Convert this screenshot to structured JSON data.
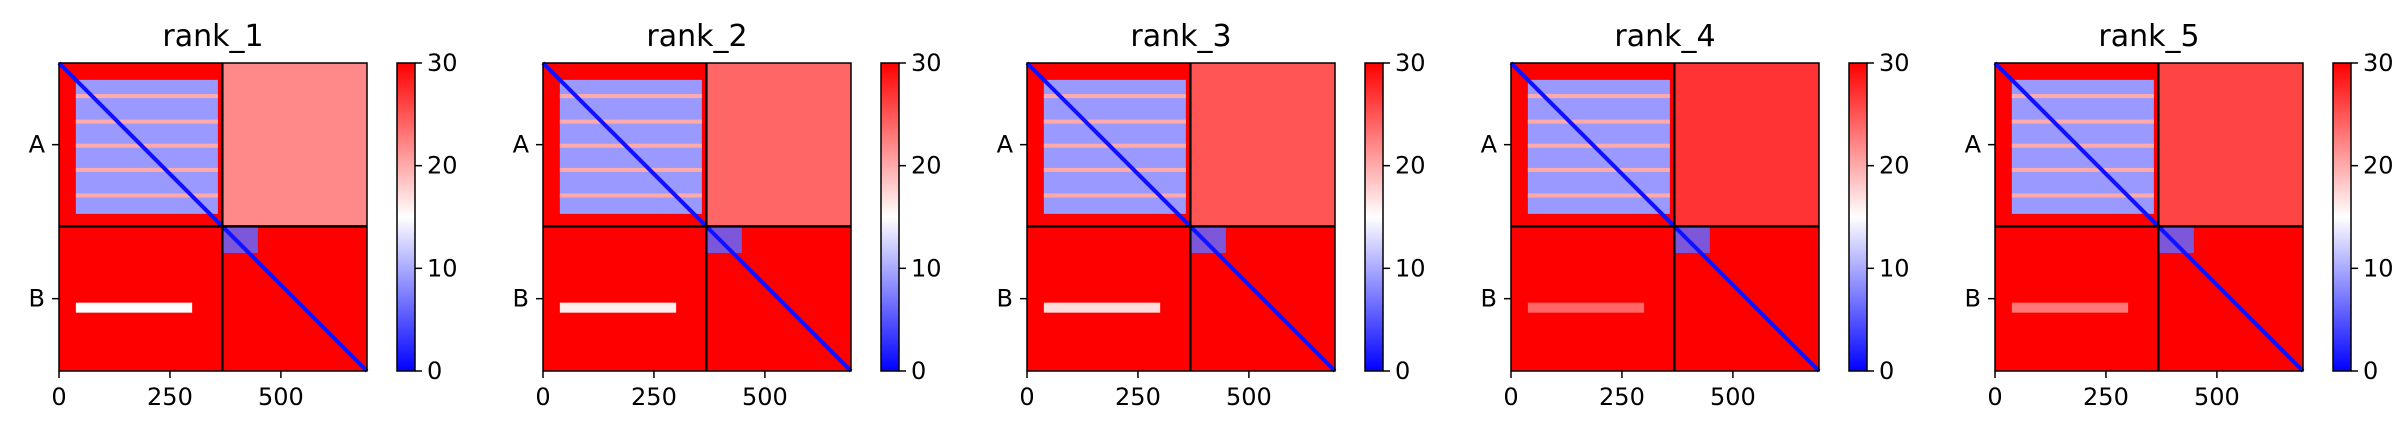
{
  "chart_data": [
    {
      "type": "heatmap",
      "title": "rank_1",
      "x_ticks": [
        0,
        250,
        500
      ],
      "y_tick_labels": [
        "A",
        "B"
      ],
      "xlim": [
        0,
        694
      ],
      "chain_boundary": 368,
      "colorbar": {
        "min": 0,
        "max": 30,
        "ticks": [
          0,
          10,
          20,
          30
        ]
      },
      "colormap": [
        "#0000ff",
        "#ffffff",
        "#ff0000"
      ],
      "inter_chain_PAE": {
        "A_vs_B": 22,
        "B_vs_A_band": 15
      },
      "intra_chain_PAE": {
        "A_domain": 9,
        "B_near_diagonal": 6
      }
    },
    {
      "type": "heatmap",
      "title": "rank_2",
      "x_ticks": [
        0,
        250,
        500
      ],
      "y_tick_labels": [
        "A",
        "B"
      ],
      "xlim": [
        0,
        694
      ],
      "chain_boundary": 368,
      "colorbar": {
        "min": 0,
        "max": 30,
        "ticks": [
          0,
          10,
          20,
          30
        ]
      },
      "colormap": [
        "#0000ff",
        "#ffffff",
        "#ff0000"
      ],
      "inter_chain_PAE": {
        "A_vs_B": 24,
        "B_vs_A_band": 16
      },
      "intra_chain_PAE": {
        "A_domain": 9,
        "B_near_diagonal": 6
      }
    },
    {
      "type": "heatmap",
      "title": "rank_3",
      "x_ticks": [
        0,
        250,
        500
      ],
      "y_tick_labels": [
        "A",
        "B"
      ],
      "xlim": [
        0,
        694
      ],
      "chain_boundary": 368,
      "colorbar": {
        "min": 0,
        "max": 30,
        "ticks": [
          0,
          10,
          20,
          30
        ]
      },
      "colormap": [
        "#0000ff",
        "#ffffff",
        "#ff0000"
      ],
      "inter_chain_PAE": {
        "A_vs_B": 25,
        "B_vs_A_band": 17
      },
      "intra_chain_PAE": {
        "A_domain": 9,
        "B_near_diagonal": 6
      }
    },
    {
      "type": "heatmap",
      "title": "rank_4",
      "x_ticks": [
        0,
        250,
        500
      ],
      "y_tick_labels": [
        "A",
        "B"
      ],
      "xlim": [
        0,
        694
      ],
      "chain_boundary": 368,
      "colorbar": {
        "min": 0,
        "max": 30,
        "ticks": [
          0,
          10,
          20,
          30
        ]
      },
      "colormap": [
        "#0000ff",
        "#ffffff",
        "#ff0000"
      ],
      "inter_chain_PAE": {
        "A_vs_B": 27,
        "B_vs_A_band": 24
      },
      "intra_chain_PAE": {
        "A_domain": 9,
        "B_near_diagonal": 6
      }
    },
    {
      "type": "heatmap",
      "title": "rank_5",
      "x_ticks": [
        0,
        250,
        500
      ],
      "y_tick_labels": [
        "A",
        "B"
      ],
      "xlim": [
        0,
        694
      ],
      "chain_boundary": 368,
      "colorbar": {
        "min": 0,
        "max": 30,
        "ticks": [
          0,
          10,
          20,
          30
        ]
      },
      "colormap": [
        "#0000ff",
        "#ffffff",
        "#ff0000"
      ],
      "inter_chain_PAE": {
        "A_vs_B": 26,
        "B_vs_A_band": 23
      },
      "intra_chain_PAE": {
        "A_domain": 9,
        "B_near_diagonal": 6
      }
    }
  ]
}
